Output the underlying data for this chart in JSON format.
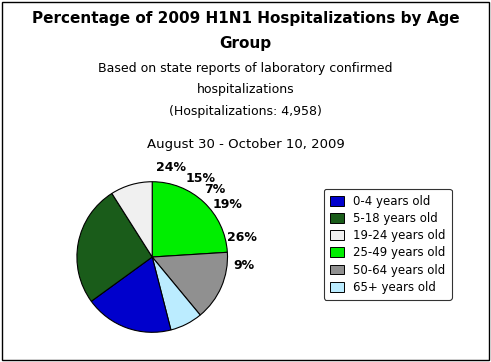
{
  "title_line1": "Percentage of 2009 H1N1 Hospitalizations by Age",
  "title_line2": "Group",
  "subtitle1": "Based on state reports of laboratory confirmed",
  "subtitle2": "hospitalizations",
  "subtitle3": "(Hospitalizations: 4,958)",
  "subtitle4": "August 30 - October 10, 2009",
  "plot_values": [
    24,
    15,
    7,
    19,
    26,
    9
  ],
  "plot_colors": [
    "#00EE00",
    "#909090",
    "#BBECFF",
    "#0000CC",
    "#1A5C1A",
    "#F0F0F0"
  ],
  "plot_pcts": [
    "24%",
    "15%",
    "7%",
    "19%",
    "26%",
    "9%"
  ],
  "legend_labels": [
    "0-4 years old",
    "5-18 years old",
    "19-24 years old",
    "25-49 years old",
    "50-64 years old",
    "65+ years old"
  ],
  "legend_colors": [
    "#0000CC",
    "#1A5C1A",
    "#F0F0F0",
    "#00EE00",
    "#909090",
    "#BBECFF"
  ],
  "background_color": "#FFFFFF",
  "title_fontsize": 11,
  "subtitle_fontsize": 9,
  "date_fontsize": 9.5,
  "pct_fontsize": 9,
  "legend_fontsize": 8.5
}
